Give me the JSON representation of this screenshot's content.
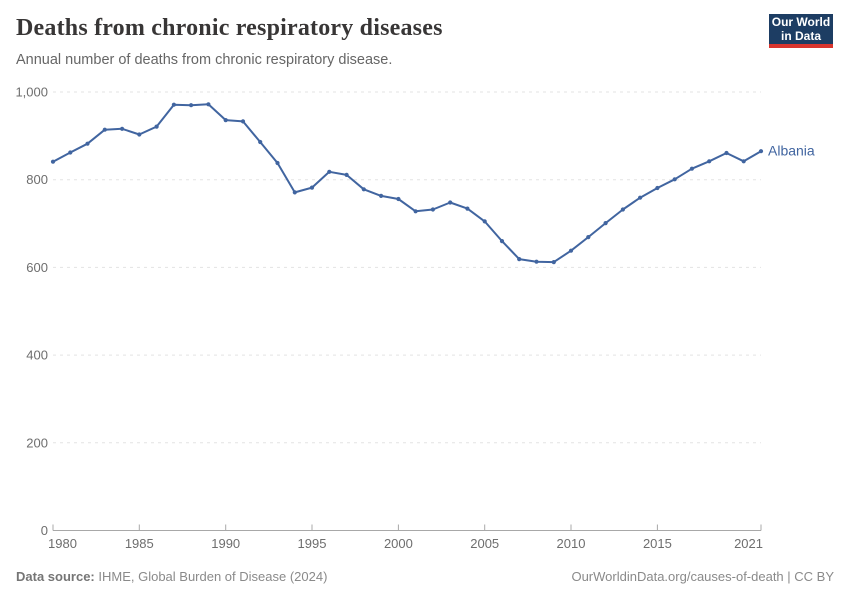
{
  "header": {
    "title": "Deaths from chronic respiratory diseases",
    "subtitle": "Annual number of deaths from chronic respiratory disease.",
    "logo": {
      "line1": "Our World",
      "line2": "in Data",
      "bg_color": "#1d3d63",
      "accent_color": "#d8352e"
    }
  },
  "chart_data": {
    "type": "line",
    "title": "Deaths from chronic respiratory diseases",
    "xlabel": "",
    "ylabel": "",
    "xlim": [
      1980,
      2021
    ],
    "ylim": [
      0,
      1000
    ],
    "grid": "horizontal-dashed",
    "legend_position": "end-of-line-label",
    "x_ticks": [
      1980,
      1985,
      1990,
      1995,
      2000,
      2005,
      2010,
      2015,
      2021
    ],
    "y_ticks": [
      0,
      200,
      400,
      600,
      800,
      1000
    ],
    "y_tick_labels": [
      "0",
      "200",
      "400",
      "600",
      "800",
      "1,000"
    ],
    "series": [
      {
        "name": "Albania",
        "color": "#4165a0",
        "x": [
          1980,
          1981,
          1982,
          1983,
          1984,
          1985,
          1986,
          1987,
          1988,
          1989,
          1990,
          1991,
          1992,
          1993,
          1994,
          1995,
          1996,
          1997,
          1998,
          1999,
          2000,
          2001,
          2002,
          2003,
          2004,
          2005,
          2006,
          2007,
          2008,
          2009,
          2010,
          2011,
          2012,
          2013,
          2014,
          2015,
          2016,
          2017,
          2018,
          2019,
          2020,
          2021
        ],
        "values": [
          841,
          862,
          882,
          914,
          916,
          903,
          921,
          971,
          970,
          972,
          936,
          933,
          886,
          838,
          771,
          782,
          818,
          811,
          778,
          763,
          756,
          728,
          732,
          748,
          734,
          705,
          660,
          619,
          613,
          612,
          638,
          669,
          701,
          732,
          759,
          781,
          801,
          825,
          842,
          861,
          842,
          865
        ]
      }
    ]
  },
  "footer": {
    "source_label": "Data source:",
    "source_text": " IHME, Global Burden of Disease (2024)",
    "attribution": "OurWorldinData.org/causes-of-death | CC BY"
  },
  "style": {
    "grid_color": "#e3e3e3",
    "axis_color": "#a8a8a8",
    "tick_label_color": "#6e6e6e"
  }
}
